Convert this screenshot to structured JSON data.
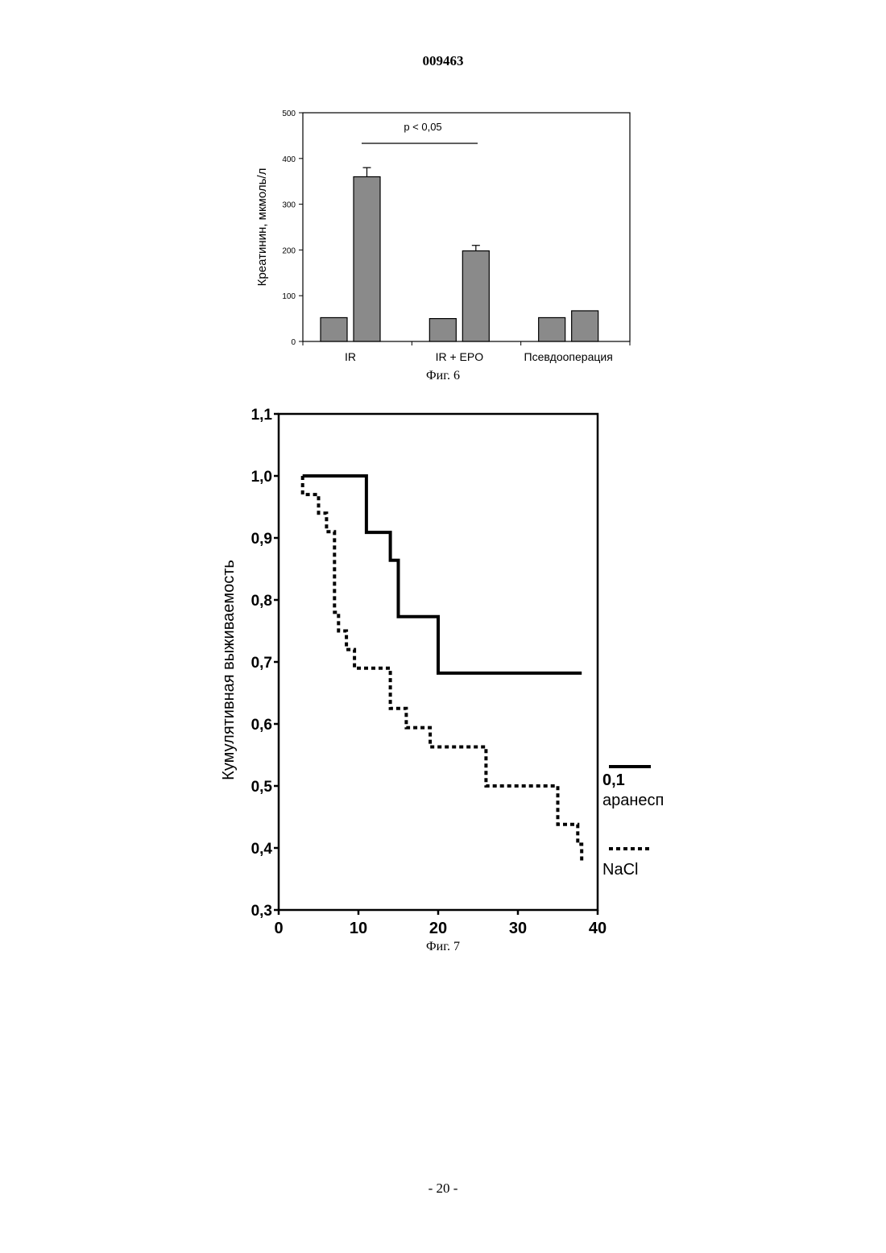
{
  "page": {
    "top_number": "009463",
    "bottom_number": "- 20 -"
  },
  "figure6": {
    "caption": "Фиг. 6"
  },
  "figure7": {
    "caption": "Фиг. 7"
  },
  "colors": {
    "bar_fill": "#8a8a8a",
    "axis": "#000000"
  },
  "chart_data": [
    {
      "type": "bar",
      "ylabel": "Креатинин, мкмоль/л",
      "ylim": [
        0,
        500
      ],
      "yticks": [
        "0",
        "100",
        "200",
        "300",
        "400",
        "500"
      ],
      "categories": [
        "IR",
        "IR + EPO",
        "Псевдооперация"
      ],
      "series": [
        {
          "values": [
            52,
            50,
            52
          ]
        },
        {
          "values": [
            360,
            198,
            67
          ],
          "errors": [
            20,
            12,
            0
          ]
        }
      ],
      "annotation": "p < 0,05",
      "grid": false
    },
    {
      "type": "line",
      "ylabel": "Кумулятивная выживаемость",
      "xlim": [
        0,
        40
      ],
      "ylim": [
        0.3,
        1.1
      ],
      "xticks": [
        "0",
        "10",
        "20",
        "30",
        "40"
      ],
      "yticks": [
        "0,3",
        "0,4",
        "0,5",
        "0,6",
        "0,7",
        "0,8",
        "0,9",
        "1,0",
        "1,1"
      ],
      "legend_position": "right",
      "series": [
        {
          "name": "0,1\nаранесп",
          "style": "solid",
          "x": [
            3,
            11,
            11,
            14,
            14,
            15,
            15,
            20,
            20,
            38
          ],
          "y": [
            1.0,
            1.0,
            0.909,
            0.909,
            0.864,
            0.864,
            0.773,
            0.773,
            0.682,
            0.682
          ]
        },
        {
          "name": "NaCl",
          "style": "dotted",
          "x": [
            3,
            3,
            5,
            5,
            6,
            6,
            7,
            7,
            7.5,
            7.5,
            8.5,
            8.5,
            9.5,
            9.5,
            14,
            14,
            16,
            16,
            19,
            19,
            26,
            26,
            35,
            35,
            37.5,
            37.5,
            38,
            38
          ],
          "y": [
            1.0,
            0.97,
            0.97,
            0.94,
            0.94,
            0.91,
            0.91,
            0.78,
            0.78,
            0.75,
            0.75,
            0.72,
            0.72,
            0.69,
            0.69,
            0.625,
            0.625,
            0.594,
            0.594,
            0.563,
            0.563,
            0.5,
            0.5,
            0.438,
            0.438,
            0.406,
            0.406,
            0.375
          ]
        }
      ]
    }
  ]
}
